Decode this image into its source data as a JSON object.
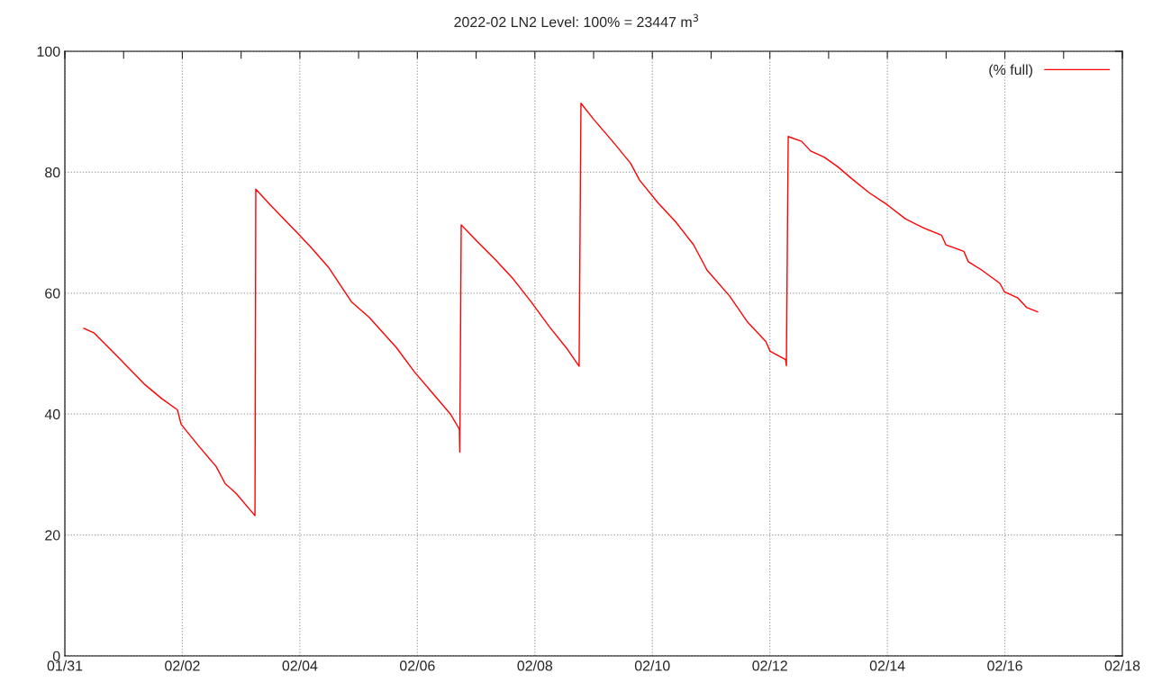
{
  "chart_data": {
    "type": "line",
    "title": "2022-02 LN2 Level: 100% = 23447 m$^{3}$",
    "x": [
      "2022-01-31T07:45",
      "2022-01-31T12:00",
      "2022-01-31T21:20",
      "2022-02-01T08:20",
      "2022-02-01T15:45",
      "2022-02-01T22:00",
      "2022-02-01T23:30",
      "2022-02-02T06:30",
      "2022-02-02T13:50",
      "2022-02-02T17:30",
      "2022-02-02T21:55",
      "2022-02-03T05:40",
      "2022-02-03T06:00",
      "2022-02-03T11:55",
      "2022-02-03T17:25",
      "2022-02-03T22:10",
      "2022-02-04T04:30",
      "2022-02-04T11:50",
      "2022-02-04T21:00",
      "2022-02-05T04:20",
      "2022-02-05T15:25",
      "2022-02-05T22:45",
      "2022-02-06T06:10",
      "2022-02-06T13:30",
      "2022-02-06T17:10",
      "2022-02-06T17:20",
      "2022-02-06T17:55",
      "2022-02-07T00:35",
      "2022-02-07T07:55",
      "2022-02-07T15:15",
      "2022-02-07T22:35",
      "2022-02-08T06:00",
      "2022-02-08T13:20",
      "2022-02-08T18:05",
      "2022-02-08T18:50",
      "2022-02-09T00:20",
      "2022-02-09T07:45",
      "2022-02-09T15:05",
      "2022-02-09T18:45",
      "2022-02-10T02:10",
      "2022-02-10T09:30",
      "2022-02-10T16:50",
      "2022-02-10T22:20",
      "2022-02-11T07:35",
      "2022-02-11T14:55",
      "2022-02-11T22:20",
      "2022-02-12T00:05",
      "2022-02-12T06:25",
      "2022-02-12T06:45",
      "2022-02-12T07:30",
      "2022-02-12T13:00",
      "2022-02-12T16:40",
      "2022-02-12T22:10",
      "2022-02-13T03:45",
      "2022-02-13T09:15",
      "2022-02-13T16:35",
      "2022-02-14T00:00",
      "2022-02-14T07:20",
      "2022-02-14T14:40",
      "2022-02-14T22:05",
      "2022-02-14T23:55",
      "2022-02-15T07:15",
      "2022-02-15T09:05",
      "2022-02-15T14:35",
      "2022-02-15T22:00",
      "2022-02-15T23:50",
      "2022-02-16T05:20",
      "2022-02-16T09:00",
      "2022-02-16T13:25"
    ],
    "series": [
      {
        "name": "(% full)",
        "color": "#ff0000",
        "values": [
          54.2,
          53.4,
          49.6,
          45.0,
          42.5,
          40.7,
          38.3,
          34.8,
          31.3,
          28.5,
          26.9,
          23.2,
          77.2,
          74.6,
          72.3,
          70.3,
          67.6,
          64.2,
          58.6,
          56.0,
          51.0,
          47.0,
          43.5,
          40.0,
          37.5,
          33.7,
          71.3,
          68.5,
          65.5,
          62.3,
          58.5,
          54.4,
          50.7,
          47.9,
          91.4,
          88.6,
          85.1,
          81.5,
          78.7,
          75.0,
          71.8,
          68.0,
          63.8,
          59.5,
          55.2,
          52.0,
          50.4,
          49.0,
          48.0,
          85.9,
          85.1,
          83.5,
          82.5,
          80.9,
          79.0,
          76.6,
          74.6,
          72.3,
          70.8,
          69.6,
          68.0,
          66.9,
          65.2,
          63.8,
          61.6,
          60.2,
          59.2,
          57.6,
          56.9
        ]
      }
    ],
    "xlim": [
      "2022-01-31",
      "2022-02-18"
    ],
    "xticks": [
      {
        "value": "2022-01-31",
        "label": "01/31"
      },
      {
        "value": "2022-02-01",
        "label": null
      },
      {
        "value": "2022-02-02",
        "label": "02/02"
      },
      {
        "value": "2022-02-03",
        "label": null
      },
      {
        "value": "2022-02-04",
        "label": "02/04"
      },
      {
        "value": "2022-02-05",
        "label": null
      },
      {
        "value": "2022-02-06",
        "label": "02/06"
      },
      {
        "value": "2022-02-07",
        "label": null
      },
      {
        "value": "2022-02-08",
        "label": "02/08"
      },
      {
        "value": "2022-02-09",
        "label": null
      },
      {
        "value": "2022-02-10",
        "label": "02/10"
      },
      {
        "value": "2022-02-11",
        "label": null
      },
      {
        "value": "2022-02-12",
        "label": "02/12"
      },
      {
        "value": "2022-02-13",
        "label": null
      },
      {
        "value": "2022-02-14",
        "label": "02/14"
      },
      {
        "value": "2022-02-15",
        "label": null
      },
      {
        "value": "2022-02-16",
        "label": "02/16"
      },
      {
        "value": "2022-02-17",
        "label": null
      },
      {
        "value": "2022-02-18",
        "label": "02/18"
      }
    ],
    "ylim": [
      0,
      100
    ],
    "yticks": [
      0,
      20,
      40,
      60,
      80,
      100
    ],
    "grid": true,
    "legend": "top right",
    "line_style": "solid",
    "marker": "none"
  }
}
